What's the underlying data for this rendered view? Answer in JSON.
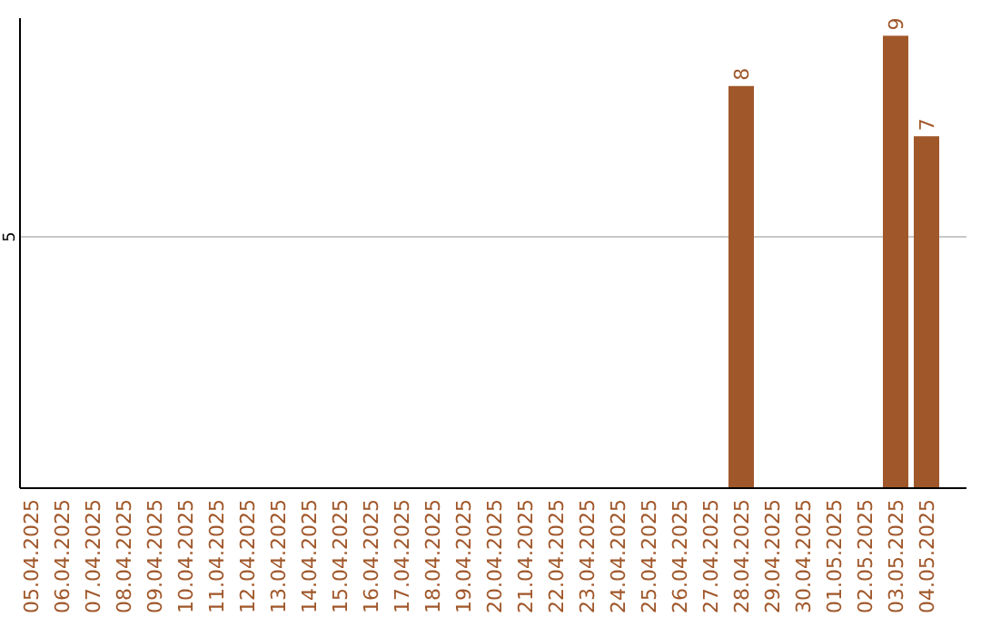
{
  "chart_data": {
    "type": "bar",
    "categories": [
      "05.04.2025",
      "06.04.2025",
      "07.04.2025",
      "08.04.2025",
      "09.04.2025",
      "10.04.2025",
      "11.04.2025",
      "12.04.2025",
      "13.04.2025",
      "14.04.2025",
      "15.04.2025",
      "16.04.2025",
      "17.04.2025",
      "18.04.2025",
      "19.04.2025",
      "20.04.2025",
      "21.04.2025",
      "22.04.2025",
      "23.04.2025",
      "24.04.2025",
      "25.04.2025",
      "26.04.2025",
      "27.04.2025",
      "28.04.2025",
      "29.04.2025",
      "30.04.2025",
      "01.05.2025",
      "02.05.2025",
      "03.05.2025",
      "04.05.2025"
    ],
    "values": [
      null,
      null,
      null,
      null,
      null,
      null,
      null,
      null,
      null,
      null,
      null,
      null,
      null,
      null,
      null,
      null,
      null,
      null,
      null,
      null,
      null,
      null,
      null,
      8,
      null,
      null,
      null,
      null,
      9,
      7
    ],
    "data_labels": true,
    "color": "#a0572a",
    "ylim": [
      0,
      9.35
    ],
    "ref_lines": [
      {
        "axis": "y",
        "value": 5,
        "label": "5",
        "color": "#c8c8c8"
      }
    ]
  }
}
